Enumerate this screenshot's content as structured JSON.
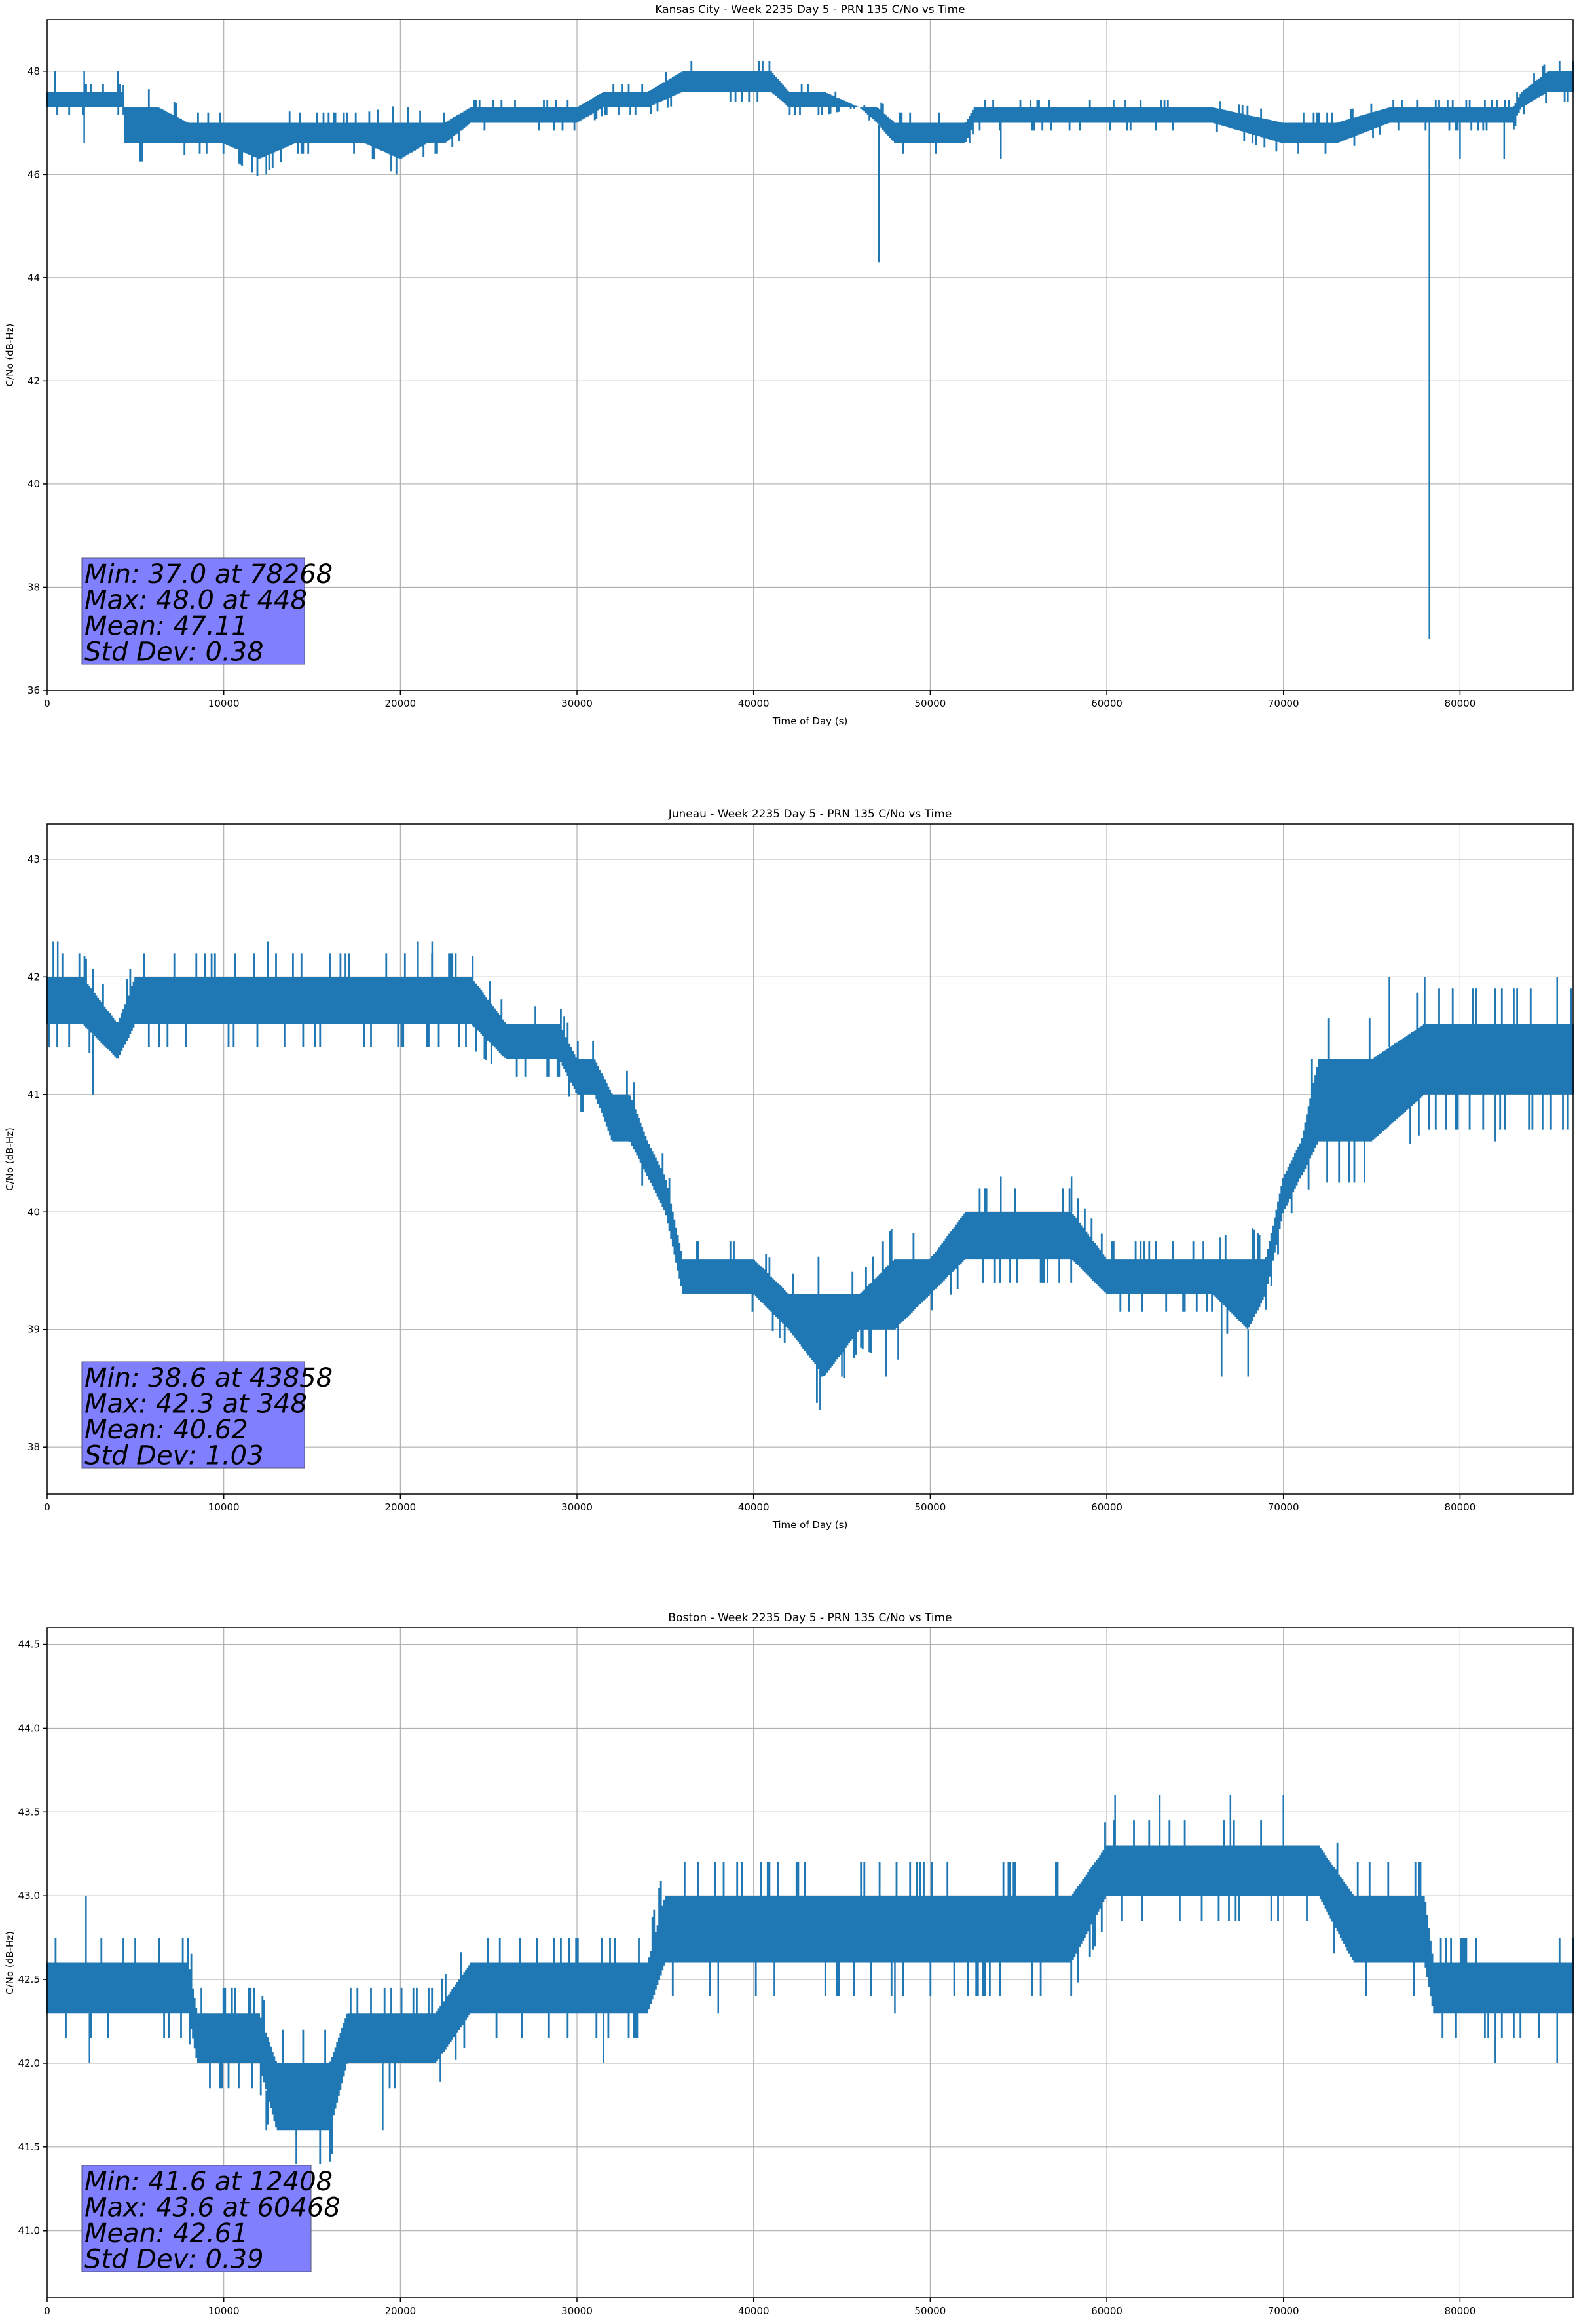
{
  "chart_data": [
    {
      "type": "line",
      "title": "Kansas City - Week 2235 Day 5 - PRN 135 C/No vs Time",
      "xlabel": "Time of Day (s)",
      "ylabel": "C/No (dB-Hz)",
      "xlim": [
        0,
        86400
      ],
      "ylim": [
        36,
        49
      ],
      "xticks": [
        0,
        10000,
        20000,
        30000,
        40000,
        50000,
        60000,
        70000,
        80000
      ],
      "yticks": [
        36,
        38,
        40,
        42,
        44,
        46,
        48
      ],
      "ytick_labels": [
        "36",
        "38",
        "40",
        "42",
        "44",
        "46",
        "48"
      ],
      "grid": true,
      "color": "#1f77b4",
      "base": {
        "x": [
          0,
          2000,
          4300,
          4400,
          6300,
          8000,
          10000,
          12000,
          14000,
          16000,
          18000,
          20000,
          21500,
          22500,
          24000,
          26000,
          28000,
          30000,
          31500,
          32000,
          34000,
          36000,
          38000,
          40000,
          41000,
          42000,
          44000,
          46000,
          47000,
          48000,
          50000,
          52000,
          52500,
          54000,
          56000,
          58000,
          60000,
          62000,
          66000,
          70000,
          73000,
          76000,
          80000,
          83000,
          83500,
          85000,
          86400
        ],
        "lo": [
          47.3,
          47.3,
          47.3,
          46.6,
          46.6,
          46.6,
          46.6,
          46.3,
          46.6,
          46.6,
          46.6,
          46.3,
          46.6,
          46.6,
          47.0,
          47.0,
          47.0,
          47.0,
          47.3,
          47.3,
          47.3,
          47.6,
          47.6,
          47.6,
          47.6,
          47.3,
          47.3,
          47.3,
          47.0,
          46.6,
          46.6,
          46.6,
          47.0,
          47.0,
          47.0,
          47.0,
          47.0,
          47.0,
          47.0,
          46.6,
          46.6,
          47.0,
          47.0,
          47.0,
          47.3,
          47.6,
          47.6
        ],
        "hi": [
          47.6,
          47.6,
          47.6,
          47.3,
          47.3,
          47.0,
          47.0,
          47.0,
          47.0,
          47.0,
          47.0,
          47.0,
          47.0,
          47.0,
          47.3,
          47.3,
          47.3,
          47.3,
          47.6,
          47.6,
          47.6,
          48.0,
          48.0,
          48.0,
          48.0,
          47.6,
          47.6,
          47.3,
          47.3,
          47.0,
          47.0,
          47.0,
          47.3,
          47.3,
          47.3,
          47.3,
          47.3,
          47.3,
          47.3,
          47.0,
          47.0,
          47.3,
          47.3,
          47.3,
          47.6,
          48.0,
          48.0
        ]
      },
      "spikes": [
        {
          "x": 448,
          "y": 48.0
        },
        {
          "x": 2100,
          "y": 48.0
        },
        {
          "x": 4000,
          "y": 48.0
        },
        {
          "x": 2100,
          "y": 46.6
        },
        {
          "x": 12408,
          "y": 46.0
        },
        {
          "x": 18500,
          "y": 46.3
        },
        {
          "x": 47100,
          "y": 44.3
        },
        {
          "x": 54000,
          "y": 46.3
        },
        {
          "x": 78268,
          "y": 37.0
        },
        {
          "x": 80000,
          "y": 46.3
        },
        {
          "x": 82500,
          "y": 46.3
        }
      ],
      "stats": [
        "Min: 37.0 at 78268",
        "Max: 48.0 at 448",
        "Mean: 47.11",
        "Std Dev: 0.38"
      ]
    },
    {
      "type": "line",
      "title": "Juneau - Week 2235 Day 5 - PRN 135 C/No vs Time",
      "xlabel": "Time of Day (s)",
      "ylabel": "C/No (dB-Hz)",
      "xlim": [
        0,
        86400
      ],
      "ylim": [
        37.6,
        43.3
      ],
      "xticks": [
        0,
        10000,
        20000,
        30000,
        40000,
        50000,
        60000,
        70000,
        80000
      ],
      "yticks": [
        38,
        39,
        40,
        41,
        42,
        43
      ],
      "ytick_labels": [
        "38",
        "39",
        "40",
        "41",
        "42",
        "43"
      ],
      "grid": true,
      "color": "#1f77b4",
      "base": {
        "x": [
          0,
          2000,
          4000,
          5000,
          8000,
          12000,
          16000,
          20000,
          24000,
          26000,
          28000,
          29000,
          30000,
          31000,
          32000,
          33000,
          34000,
          35000,
          36000,
          38000,
          40000,
          42000,
          44000,
          46000,
          48000,
          50000,
          52000,
          54000,
          56000,
          58000,
          60000,
          62000,
          64000,
          66000,
          68000,
          69000,
          70000,
          71000,
          72000,
          75000,
          78000,
          80000,
          83000,
          86400
        ],
        "lo": [
          41.6,
          41.6,
          41.3,
          41.6,
          41.6,
          41.6,
          41.6,
          41.6,
          41.6,
          41.3,
          41.3,
          41.3,
          41.0,
          41.0,
          40.6,
          40.6,
          40.3,
          40.0,
          39.3,
          39.3,
          39.3,
          39.0,
          38.6,
          39.0,
          39.0,
          39.3,
          39.6,
          39.6,
          39.6,
          39.6,
          39.3,
          39.3,
          39.3,
          39.3,
          39.0,
          39.3,
          40.0,
          40.3,
          40.6,
          40.6,
          41.0,
          41.0,
          41.0,
          41.0
        ],
        "hi": [
          42.0,
          42.0,
          41.6,
          42.0,
          42.0,
          42.0,
          42.0,
          42.0,
          42.0,
          41.6,
          41.6,
          41.6,
          41.3,
          41.3,
          41.0,
          41.0,
          40.6,
          40.3,
          39.6,
          39.6,
          39.6,
          39.3,
          39.3,
          39.3,
          39.6,
          39.6,
          40.0,
          40.0,
          40.0,
          40.0,
          39.6,
          39.6,
          39.6,
          39.6,
          39.6,
          39.6,
          40.3,
          40.6,
          41.3,
          41.3,
          41.6,
          41.6,
          41.6,
          41.6
        ]
      },
      "spikes": [
        {
          "x": 348,
          "y": 42.3
        },
        {
          "x": 600,
          "y": 42.3
        },
        {
          "x": 2600,
          "y": 41.0
        },
        {
          "x": 12500,
          "y": 42.3
        },
        {
          "x": 21000,
          "y": 42.3
        },
        {
          "x": 21800,
          "y": 42.3
        },
        {
          "x": 43858,
          "y": 38.6
        },
        {
          "x": 45000,
          "y": 38.6
        },
        {
          "x": 47500,
          "y": 38.6
        },
        {
          "x": 54000,
          "y": 40.3
        },
        {
          "x": 58000,
          "y": 40.3
        },
        {
          "x": 66500,
          "y": 38.6
        },
        {
          "x": 68000,
          "y": 38.6
        },
        {
          "x": 76000,
          "y": 42.0
        },
        {
          "x": 78000,
          "y": 42.0
        },
        {
          "x": 82000,
          "y": 40.6
        },
        {
          "x": 85500,
          "y": 42.0
        }
      ],
      "stats": [
        "Min: 38.6 at 43858",
        "Max: 42.3 at 348",
        "Mean: 40.62",
        "Std Dev: 1.03"
      ]
    },
    {
      "type": "line",
      "title": "Boston - Week 2235 Day 5 - PRN 135 C/No vs Time",
      "xlabel": "Time of Day (s)",
      "ylabel": "C/No (dB-Hz)",
      "xlim": [
        0,
        86400
      ],
      "ylim": [
        40.6,
        44.6
      ],
      "xticks": [
        0,
        10000,
        20000,
        30000,
        40000,
        50000,
        60000,
        70000,
        80000
      ],
      "yticks": [
        41.0,
        41.5,
        42.0,
        42.5,
        43.0,
        43.5,
        44.0,
        44.5
      ],
      "ytick_labels": [
        "41.0",
        "41.5",
        "42.0",
        "42.5",
        "43.0",
        "43.5",
        "44.0",
        "44.5"
      ],
      "grid": true,
      "color": "#1f77b4",
      "base": {
        "x": [
          0,
          2000,
          4000,
          6000,
          8000,
          8500,
          10000,
          12000,
          13000,
          14000,
          15000,
          16000,
          17000,
          18000,
          20000,
          22000,
          24000,
          26000,
          28000,
          30000,
          32000,
          34000,
          35000,
          36000,
          40000,
          44000,
          48000,
          49000,
          52000,
          56000,
          58000,
          60000,
          62000,
          64000,
          68000,
          72000,
          74000,
          76000,
          78000,
          78500,
          80000,
          83000,
          86400
        ],
        "lo": [
          42.3,
          42.3,
          42.3,
          42.3,
          42.3,
          42.0,
          42.0,
          42.0,
          41.6,
          41.6,
          41.6,
          41.6,
          42.0,
          42.0,
          42.0,
          42.0,
          42.3,
          42.3,
          42.3,
          42.3,
          42.3,
          42.3,
          42.6,
          42.6,
          42.6,
          42.6,
          42.6,
          42.6,
          42.6,
          42.6,
          42.6,
          43.0,
          43.0,
          43.0,
          43.0,
          43.0,
          42.6,
          42.6,
          42.6,
          42.3,
          42.3,
          42.3,
          42.3
        ],
        "hi": [
          42.6,
          42.6,
          42.6,
          42.6,
          42.6,
          42.3,
          42.3,
          42.3,
          42.0,
          42.0,
          42.0,
          42.0,
          42.3,
          42.3,
          42.3,
          42.3,
          42.6,
          42.6,
          42.6,
          42.6,
          42.6,
          42.6,
          43.0,
          43.0,
          43.0,
          43.0,
          43.0,
          43.0,
          43.0,
          43.0,
          43.0,
          43.3,
          43.3,
          43.3,
          43.3,
          43.3,
          43.0,
          43.0,
          43.0,
          42.6,
          42.6,
          42.6,
          42.6
        ]
      },
      "spikes": [
        {
          "x": 2200,
          "y": 43.0
        },
        {
          "x": 2400,
          "y": 42.0
        },
        {
          "x": 12408,
          "y": 41.6
        },
        {
          "x": 19000,
          "y": 41.6
        },
        {
          "x": 31500,
          "y": 42.0
        },
        {
          "x": 38000,
          "y": 42.3
        },
        {
          "x": 48000,
          "y": 42.3
        },
        {
          "x": 60468,
          "y": 43.6
        },
        {
          "x": 63000,
          "y": 43.6
        },
        {
          "x": 67000,
          "y": 43.6
        },
        {
          "x": 70000,
          "y": 43.6
        },
        {
          "x": 82000,
          "y": 42.0
        },
        {
          "x": 85500,
          "y": 42.0
        }
      ],
      "stats": [
        "Min: 41.6 at 12408",
        "Max: 43.6 at 60468",
        "Mean: 42.61",
        "Std Dev: 0.39"
      ]
    }
  ]
}
